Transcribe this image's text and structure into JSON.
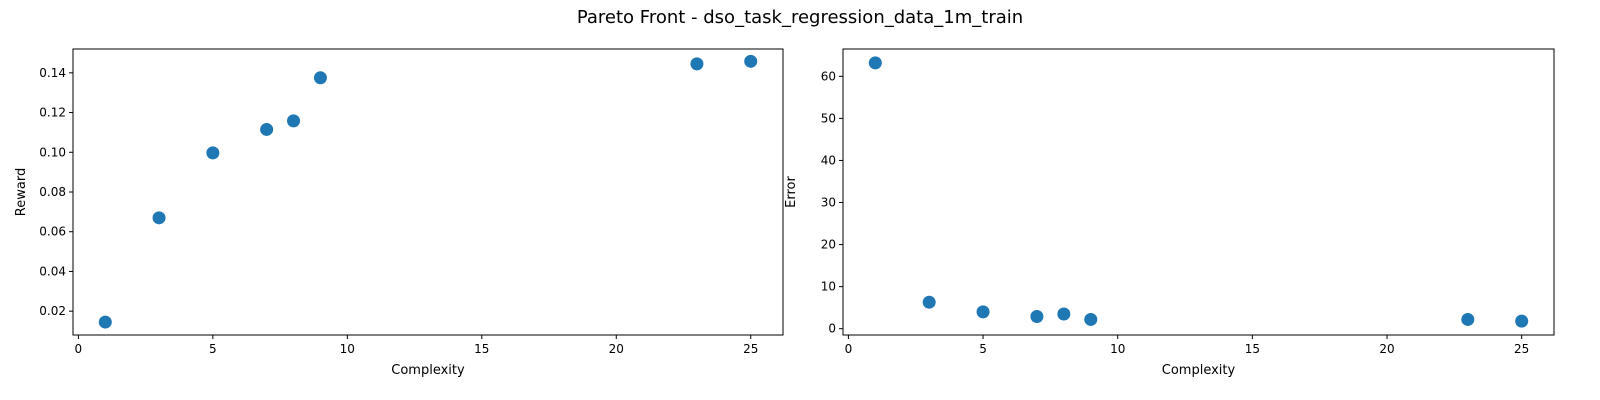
{
  "figure": {
    "title": "Pareto Front - dso_task_regression_data_1m_train"
  },
  "colors": {
    "point": "#1f77b4",
    "axes": "#000000",
    "background": "#ffffff"
  },
  "chart_data": [
    {
      "type": "scatter",
      "title": "",
      "xlabel": "Complexity",
      "ylabel": "Reward",
      "xlim": [
        -0.2,
        26.2
      ],
      "ylim": [
        0.008,
        0.152
      ],
      "xticks": [
        0,
        5,
        10,
        15,
        20,
        25
      ],
      "yticks": [
        0.02,
        0.04,
        0.06,
        0.08,
        0.1,
        0.12,
        0.14
      ],
      "ytick_labels": [
        "0.02",
        "0.04",
        "0.06",
        "0.08",
        "0.10",
        "0.12",
        "0.14"
      ],
      "grid": false,
      "points": [
        {
          "x": 1,
          "y": 0.0145
        },
        {
          "x": 3,
          "y": 0.067
        },
        {
          "x": 5,
          "y": 0.0997
        },
        {
          "x": 7,
          "y": 0.1115
        },
        {
          "x": 8,
          "y": 0.1158
        },
        {
          "x": 9,
          "y": 0.1375
        },
        {
          "x": 23,
          "y": 0.1445
        },
        {
          "x": 25,
          "y": 0.1458
        }
      ]
    },
    {
      "type": "scatter",
      "title": "",
      "xlabel": "Complexity",
      "ylabel": "Error",
      "xlim": [
        -0.2,
        26.2
      ],
      "ylim": [
        -1.5,
        66.5
      ],
      "xticks": [
        0,
        5,
        10,
        15,
        20,
        25
      ],
      "yticks": [
        0,
        10,
        20,
        30,
        40,
        50,
        60
      ],
      "ytick_labels": [
        "0",
        "10",
        "20",
        "30",
        "40",
        "50",
        "60"
      ],
      "grid": false,
      "points": [
        {
          "x": 1,
          "y": 63.2
        },
        {
          "x": 3,
          "y": 6.3
        },
        {
          "x": 5,
          "y": 4.0
        },
        {
          "x": 7,
          "y": 2.9
        },
        {
          "x": 8,
          "y": 3.5
        },
        {
          "x": 9,
          "y": 2.2
        },
        {
          "x": 23,
          "y": 2.2
        },
        {
          "x": 25,
          "y": 1.8
        }
      ]
    }
  ]
}
